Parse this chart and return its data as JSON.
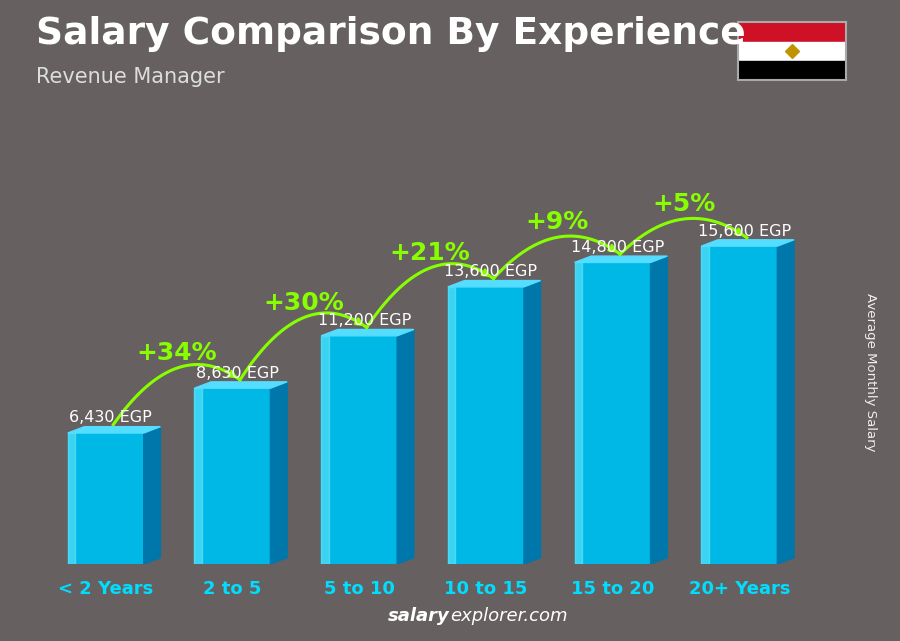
{
  "title": "Salary Comparison By Experience",
  "subtitle": "Revenue Manager",
  "ylabel": "Average Monthly Salary",
  "website": "salaryexplorer.com",
  "categories": [
    "< 2 Years",
    "2 to 5",
    "5 to 10",
    "10 to 15",
    "15 to 20",
    "20+ Years"
  ],
  "values": [
    6430,
    8630,
    11200,
    13600,
    14800,
    15600
  ],
  "value_labels": [
    "6,430 EGP",
    "8,630 EGP",
    "11,200 EGP",
    "13,600 EGP",
    "14,800 EGP",
    "15,600 EGP"
  ],
  "pct_changes": [
    null,
    "+34%",
    "+30%",
    "+21%",
    "+9%",
    "+5%"
  ],
  "bar_color_front": "#00b8e6",
  "bar_color_top": "#55ddff",
  "bar_color_side": "#0077aa",
  "bg_color": "#666060",
  "title_color": "#ffffff",
  "subtitle_color": "#dddddd",
  "label_color": "#ffffff",
  "pct_color": "#88ff00",
  "xticklabel_color": "#00ddff",
  "website_color": "#ffffff",
  "bar_width": 0.6,
  "ylim": [
    0,
    19500
  ],
  "title_fontsize": 27,
  "subtitle_fontsize": 15,
  "value_fontsize": 11.5,
  "pct_fontsize": 18,
  "xtick_fontsize": 13
}
